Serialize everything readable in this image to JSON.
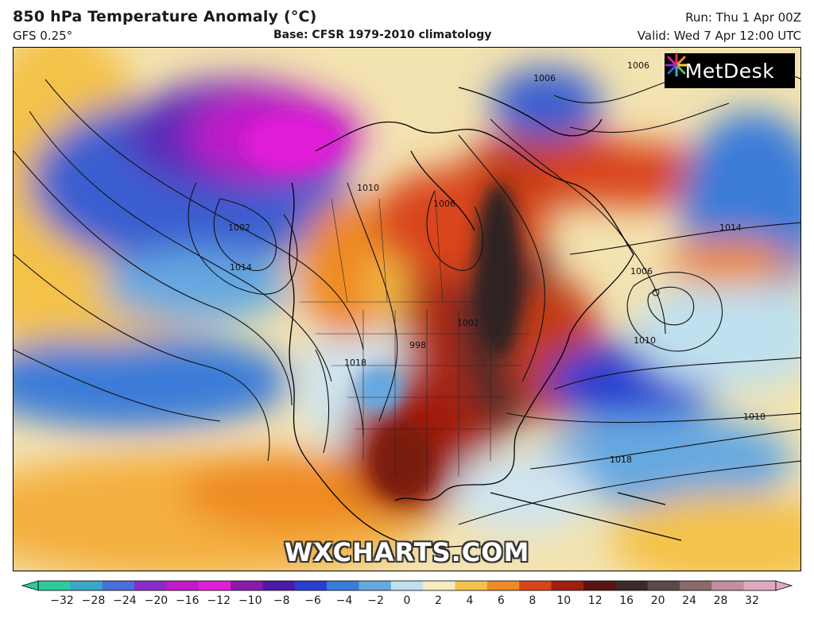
{
  "header": {
    "title": "850 hPa Temperature Anomaly (°C)",
    "model": "GFS 0.25°",
    "base": "Base: CFSR 1979-2010 climatology",
    "run": "Run: Thu 1 Apr 00Z",
    "valid": "Valid: Wed 7 Apr 12:00 UTC"
  },
  "logo": {
    "text": "MetDesk",
    "icon": "sunburst-icon"
  },
  "watermark": "WXCHARTS.COM",
  "isobar_labels": [
    "1006",
    "1014",
    "1010",
    "1006",
    "1002",
    "1014",
    "1006",
    "1010",
    "1018",
    "998",
    "1002",
    "1018",
    "1018",
    "1006"
  ],
  "colorbar": {
    "ticks": [
      "-32",
      "-28",
      "-24",
      "-20",
      "-16",
      "-12",
      "-10",
      "-8",
      "-6",
      "-4",
      "-2",
      "0",
      "2",
      "4",
      "6",
      "8",
      "10",
      "12",
      "16",
      "20",
      "24",
      "28",
      "32"
    ],
    "colors": [
      "#2fc99e",
      "#3aa8c8",
      "#4a6fd8",
      "#8a2bc8",
      "#c21bc8",
      "#e01fd8",
      "#8c1aa8",
      "#4b1aa8",
      "#2a3fd0",
      "#3a7cd8",
      "#66a8e0",
      "#bfe0ee",
      "#f6ecc0",
      "#f4c24a",
      "#ef8a24",
      "#d9451a",
      "#a01e10",
      "#5a1410",
      "#3a2a2a",
      "#5a4a4a",
      "#8a6a6a",
      "#c090a0",
      "#e0a8c0"
    ]
  }
}
